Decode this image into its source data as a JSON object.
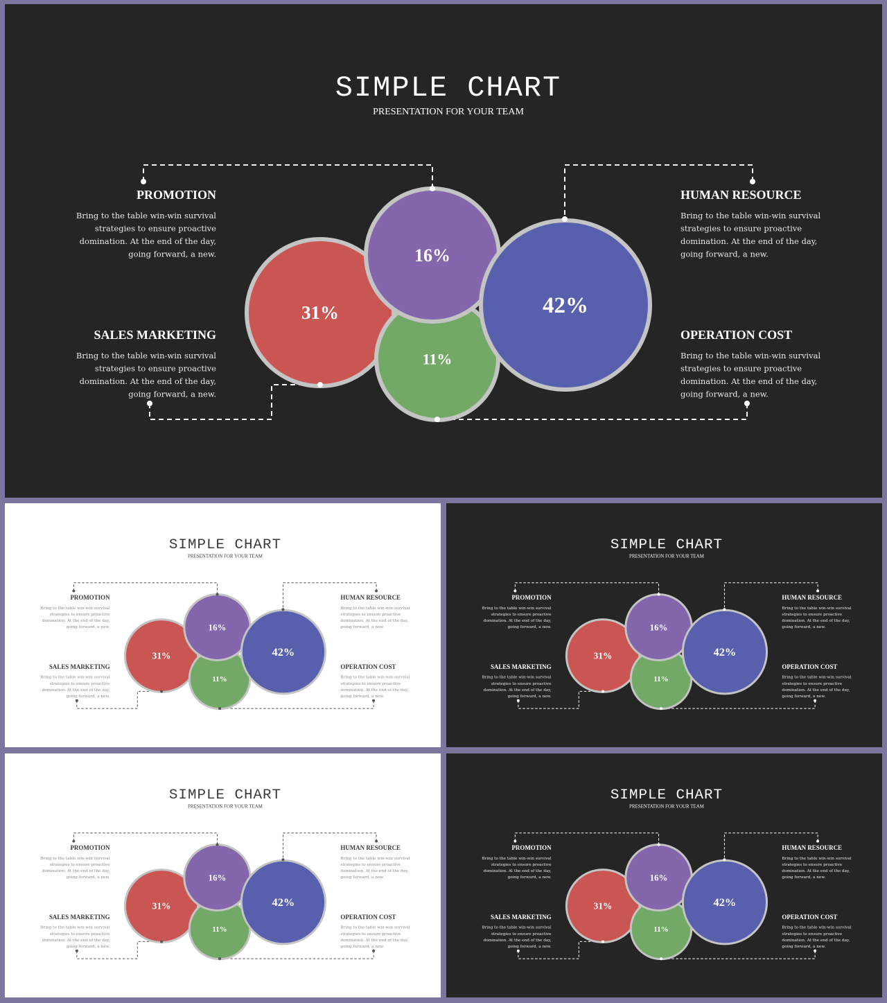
{
  "title": "SIMPLE CHART",
  "subtitle": "PRESENTATION FOR YOUR TEAM",
  "colors": {
    "frame": "#7b769e",
    "dark_bg": "#252525",
    "light_bg": "#ffffff",
    "red": "#ca5653",
    "purple": "#8466ac",
    "green": "#73a966",
    "blue": "#5860ad",
    "ring": "#c4c4c4"
  },
  "sections": {
    "promotion": {
      "heading": "PROMOTION",
      "body": [
        "Bring to the table win-win survival",
        "strategies to ensure proactive",
        "domination. At the end of the day,",
        "going forward, a new."
      ]
    },
    "human_resource": {
      "heading": "HUMAN RESOURCE",
      "body": [
        "Bring to the table win-win survival",
        "strategies to ensure proactive",
        "domination. At the end of the day,",
        "going forward, a new."
      ]
    },
    "sales_marketing": {
      "heading": "SALES MARKETING",
      "body": [
        "Bring to the table win-win survival",
        "strategies to ensure proactive",
        "domination. At the end of the day,",
        "going forward, a new."
      ]
    },
    "operation_cost": {
      "heading": "OPERATION COST",
      "body": [
        "Bring to the table win-win survival",
        "strategies to ensure proactive",
        "domination. At the end of the day,",
        "going forward, a new."
      ]
    }
  },
  "bubbles": {
    "red": "31%",
    "purple": "16%",
    "green": "11%",
    "blue": "42%"
  },
  "slides": [
    {
      "theme": "dark"
    },
    {
      "theme": "light"
    },
    {
      "theme": "dark"
    },
    {
      "theme": "light"
    },
    {
      "theme": "dark"
    }
  ]
}
